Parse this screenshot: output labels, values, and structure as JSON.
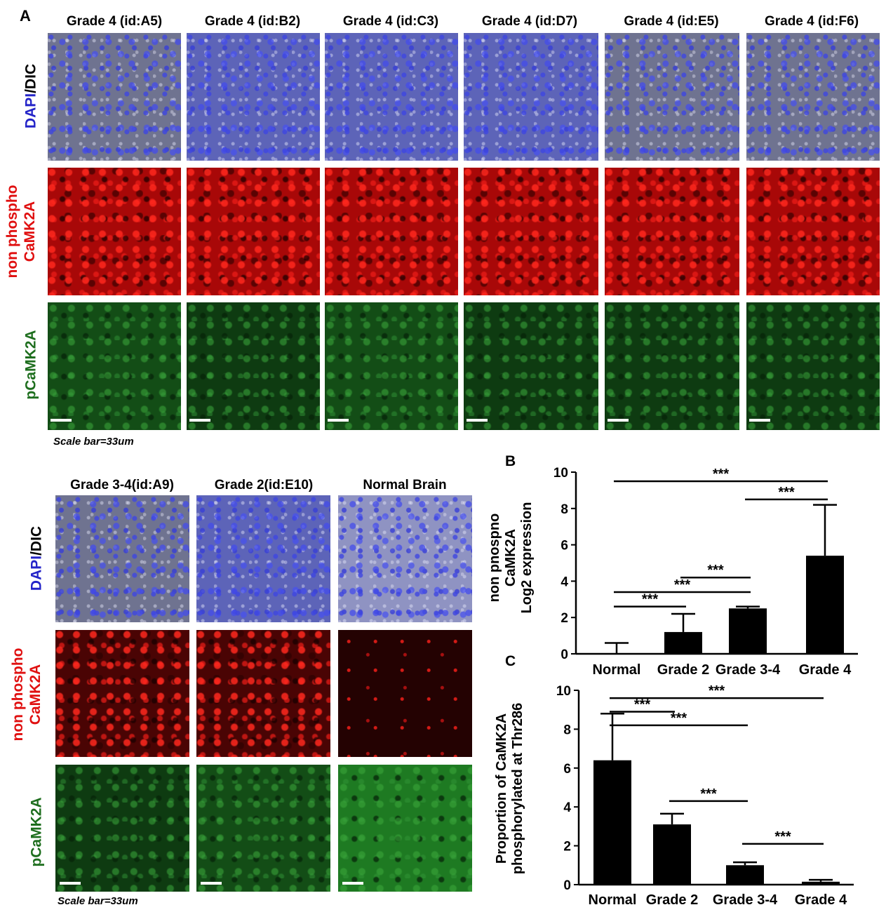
{
  "panel_a": {
    "letter": "A",
    "top_columns": [
      "Grade 4 (id:A5)",
      "Grade 4 (id:B2)",
      "Grade 4 (id:C3)",
      "Grade 4 (id:D7)",
      "Grade 4 (id:E5)",
      "Grade 4 (id:F6)"
    ],
    "bottom_columns": [
      "Grade 3-4(id:A9)",
      "Grade 2(id:E10)",
      "Normal Brain"
    ],
    "row_labels": {
      "dapi_part1": "DAPI",
      "dapi_part2": "/DIC",
      "non_phospho_line1": "non phospho",
      "non_phospho_line2": "CaMK2A",
      "pcamk2a": "pCaMK2A"
    },
    "scale_bar_text": "Scale bar=33um",
    "colors": {
      "dapi_label": "#2323c8",
      "red_label": "#e01010",
      "green_label": "#1e6e1e"
    }
  },
  "chart_data": [
    {
      "panel": "B",
      "type": "bar",
      "categories": [
        "Normal",
        "Grade 2",
        "Grade 3-4",
        "Grade 4"
      ],
      "values": [
        0.0,
        1.2,
        2.5,
        5.4
      ],
      "error": [
        0.6,
        1.0,
        0.1,
        2.8
      ],
      "ylabel_lines": [
        "non phospho",
        "CaMK2A",
        "Log2 expression"
      ],
      "ylim": [
        0,
        10
      ],
      "yticks": [
        0,
        2,
        4,
        6,
        8,
        10
      ],
      "significance": [
        {
          "from": "Normal",
          "to": "Grade 4",
          "y": 9.5,
          "label": "***"
        },
        {
          "from": "Grade 3-4",
          "to": "Grade 4",
          "y": 8.5,
          "label": "***"
        },
        {
          "from": "Grade 2",
          "to": "Grade 3-4",
          "y": 4.2,
          "label": "***"
        },
        {
          "from": "Normal",
          "to": "Grade 3-4",
          "y": 3.4,
          "label": "***"
        },
        {
          "from": "Normal",
          "to": "Grade 2",
          "y": 2.6,
          "label": "***"
        }
      ]
    },
    {
      "panel": "C",
      "type": "bar",
      "categories": [
        "Normal",
        "Grade 2",
        "Grade 3-4",
        "Grade 4"
      ],
      "values": [
        6.4,
        3.1,
        1.0,
        0.15
      ],
      "error": [
        2.4,
        0.55,
        0.15,
        0.1
      ],
      "ylabel_lines": [
        "Proportion of CaMK2A",
        "phosphorylated at Thr286"
      ],
      "ylim": [
        0,
        10
      ],
      "yticks": [
        0,
        2,
        4,
        6,
        8,
        10
      ],
      "significance": [
        {
          "from": "Normal",
          "to": "Grade 4",
          "y": 9.6,
          "label": "***"
        },
        {
          "from": "Normal",
          "to": "Grade 2",
          "y": 8.9,
          "label": "***"
        },
        {
          "from": "Normal",
          "to": "Grade 3-4",
          "y": 8.2,
          "label": "***"
        },
        {
          "from": "Grade 2",
          "to": "Grade 3-4",
          "y": 4.3,
          "label": "***"
        },
        {
          "from": "Grade 3-4",
          "to": "Grade 4",
          "y": 2.1,
          "label": "***"
        }
      ]
    }
  ]
}
